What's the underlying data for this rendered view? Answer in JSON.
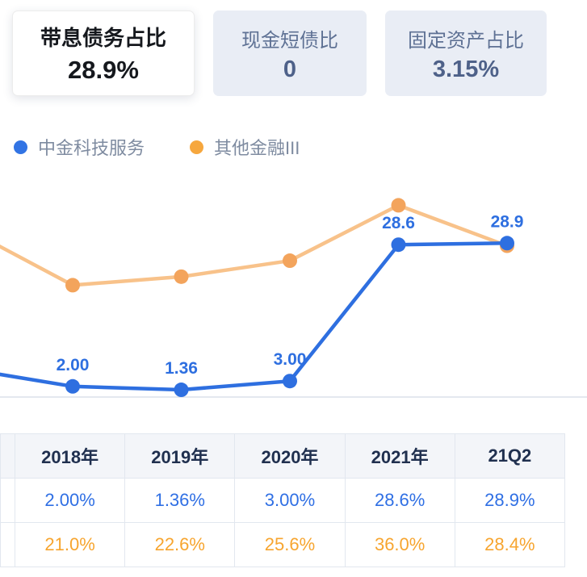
{
  "cards": [
    {
      "title": "带息债务占比",
      "value": "28.9%",
      "active": true
    },
    {
      "title": "现金短债比",
      "value": "0",
      "active": false
    },
    {
      "title": "固定资产占比",
      "value": "3.15%",
      "active": false
    }
  ],
  "legend": {
    "items": [
      {
        "label": "中金科技服务",
        "color": "#3274e4"
      },
      {
        "label": "其他金融III",
        "color": "#f6a73e"
      }
    ]
  },
  "chart_data": {
    "type": "line",
    "categories": [
      "2018年",
      "2019年",
      "2020年",
      "2021年",
      "21Q2"
    ],
    "series": [
      {
        "name": "中金科技服务",
        "values": [
          2.0,
          1.36,
          3.0,
          28.6,
          28.9
        ],
        "labels": [
          "2.00",
          "1.36",
          "3.00",
          "28.6",
          "28.9"
        ],
        "line_color": "#2e6fe0",
        "dot_color": "#2e6fe0",
        "label_color": "#2e6fe0",
        "lead_in": 5.1
      },
      {
        "name": "其他金融III",
        "values": [
          21.0,
          22.6,
          25.6,
          36.0,
          28.4
        ],
        "labels": [],
        "line_color": "#f8c28a",
        "dot_color": "#f3a45c",
        "label_color": "#f3a45c",
        "lead_in": 31
      }
    ],
    "ylim": [
      0,
      40
    ],
    "grid": false,
    "axis_color": "#e4e8ef",
    "legend_position": "top-left",
    "title": "",
    "xlabel": "",
    "ylabel": ""
  },
  "table": {
    "headers": [
      "",
      "2018年",
      "2019年",
      "2020年",
      "2021年",
      "21Q2"
    ],
    "rows": [
      {
        "color": "#2f6fe4",
        "cells": [
          "",
          "2.00%",
          "1.36%",
          "3.00%",
          "28.6%",
          "28.9%"
        ]
      },
      {
        "color": "#f7a52f",
        "cells": [
          "",
          "21.0%",
          "22.6%",
          "25.6%",
          "36.0%",
          "28.4%"
        ]
      }
    ]
  }
}
